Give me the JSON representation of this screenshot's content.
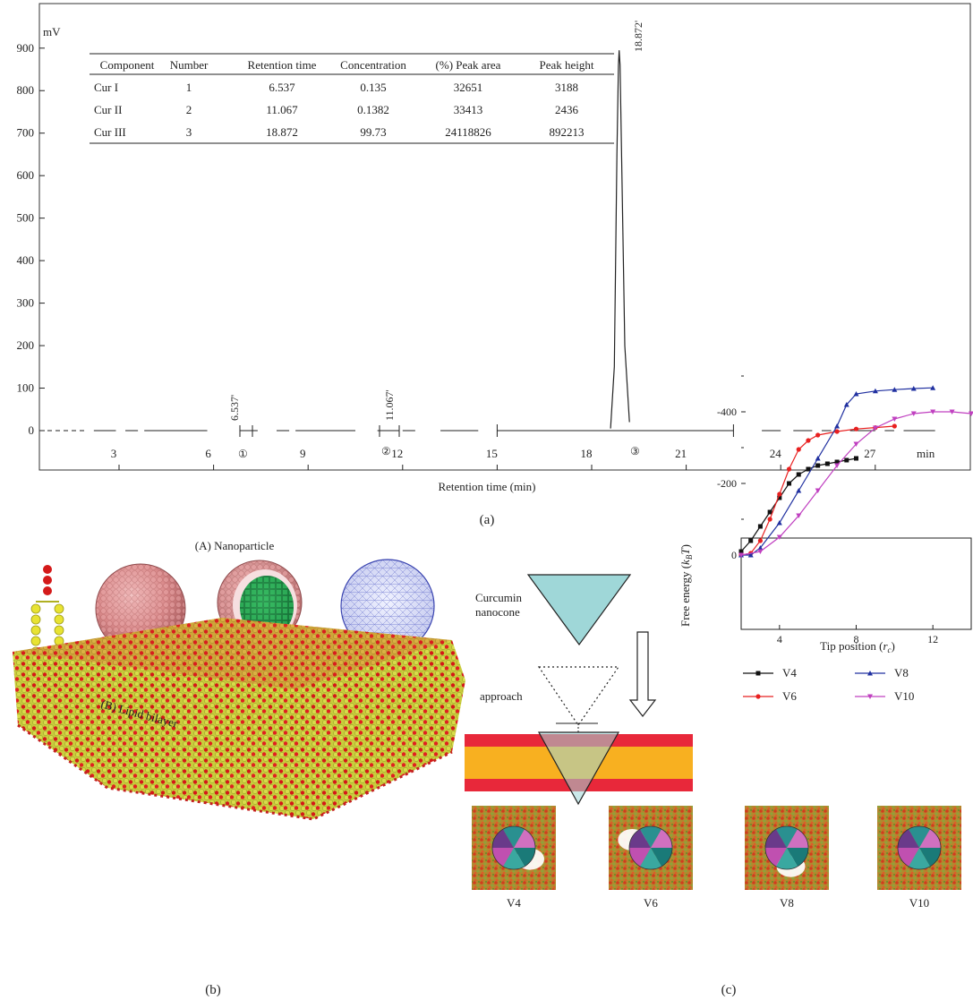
{
  "panel_a": {
    "label": "(a)",
    "y_unit": "mV",
    "x_unit": "min",
    "xlabel": "Retention time (min)",
    "y_ticks": [
      "900",
      "800",
      "700",
      "600",
      "500",
      "400",
      "300",
      "200",
      "100",
      "0"
    ],
    "x_ticks": [
      "3",
      "6",
      "9",
      "12",
      "15",
      "18",
      "21",
      "24",
      "27"
    ],
    "peak_labels": [
      "6.537'",
      "11.067'",
      "18.872'"
    ],
    "peak_markers": [
      "①",
      "②",
      "③"
    ],
    "table": {
      "headers": [
        "Component",
        "Number",
        "Retention time",
        "Concentration",
        "(%) Peak area",
        "Peak height"
      ],
      "rows": [
        [
          "Cur I",
          "1",
          "6.537",
          "0.135",
          "32651",
          "3188"
        ],
        [
          "Cur II",
          "2",
          "11.067",
          "0.1382",
          "33413",
          "2436"
        ],
        [
          "Cur III",
          "3",
          "18.872",
          "99.73",
          "24118826",
          "892213"
        ]
      ]
    }
  },
  "panel_b": {
    "label": "(b)",
    "nanoparticle_label": "(A) Nanoparticle",
    "bilayer_label": "(B) Lipid bilayer"
  },
  "panel_c": {
    "label": "(c)",
    "cone_label_line1": "Curcumin",
    "cone_label_line2": "nanocone",
    "approach_label": "approach",
    "snapshot_labels": [
      "V4",
      "V6",
      "V8",
      "V10"
    ],
    "legend": [
      "V4",
      "V6",
      "V8",
      "V10"
    ]
  },
  "chart_data": [
    {
      "type": "line",
      "ylabel": "mV",
      "xlabel": "Retention time (min)",
      "xlim": [
        0.5,
        29
      ],
      "ylim": [
        0,
        950
      ],
      "series": [
        {
          "x": [
            18.6,
            18.72,
            18.8,
            18.85,
            18.872,
            18.9,
            18.96,
            19.05,
            19.2
          ],
          "y": [
            5,
            150,
            650,
            860,
            895,
            860,
            600,
            200,
            20
          ]
        }
      ],
      "peaks": [
        {
          "x": 6.537,
          "label": "6.537'"
        },
        {
          "x": 11.067,
          "label": "11.067'"
        },
        {
          "x": 18.872,
          "label": "18.872'"
        }
      ]
    },
    {
      "type": "line",
      "xlabel": "Tip position (r_c)",
      "ylabel": "Free energy (k_B T)",
      "xlim": [
        2,
        14
      ],
      "ylim": [
        -520,
        30
      ],
      "x_ticks": [
        4,
        8,
        12
      ],
      "y_ticks": [
        0,
        -200,
        -400
      ],
      "series": [
        {
          "name": "V4",
          "color": "#111111",
          "marker": "square",
          "x": [
            2.0,
            2.5,
            3.0,
            3.5,
            4.0,
            4.5,
            5.0,
            5.5,
            6.0,
            6.5,
            7.0,
            7.5,
            8.0
          ],
          "y": [
            -10,
            -40,
            -80,
            -120,
            -160,
            -200,
            -225,
            -240,
            -250,
            -255,
            -260,
            -265,
            -270
          ]
        },
        {
          "name": "V6",
          "color": "#e82020",
          "marker": "circle",
          "x": [
            2.0,
            2.5,
            3.0,
            3.5,
            4.0,
            4.5,
            5.0,
            5.5,
            6.0,
            7.0,
            8.0,
            9.0,
            10.0
          ],
          "y": [
            0,
            -5,
            -40,
            -100,
            -170,
            -240,
            -295,
            -320,
            -335,
            -345,
            -352,
            -356,
            -360
          ]
        },
        {
          "name": "V8",
          "color": "#2030a0",
          "marker": "triangle",
          "x": [
            2.0,
            2.5,
            3.0,
            4.0,
            5.0,
            6.0,
            7.0,
            7.5,
            8.0,
            9.0,
            10.0,
            11.0,
            12.0
          ],
          "y": [
            0,
            0,
            -20,
            -90,
            -180,
            -270,
            -360,
            -420,
            -450,
            -458,
            -462,
            -465,
            -467
          ]
        },
        {
          "name": "V10",
          "color": "#c040c0",
          "marker": "down-triangle",
          "x": [
            2.0,
            3.0,
            4.0,
            5.0,
            6.0,
            7.0,
            8.0,
            9.0,
            10.0,
            11.0,
            12.0,
            13.0,
            14.0
          ],
          "y": [
            0,
            -10,
            -50,
            -110,
            -180,
            -250,
            -310,
            -355,
            -380,
            -395,
            -400,
            -400,
            -395
          ]
        }
      ]
    }
  ]
}
